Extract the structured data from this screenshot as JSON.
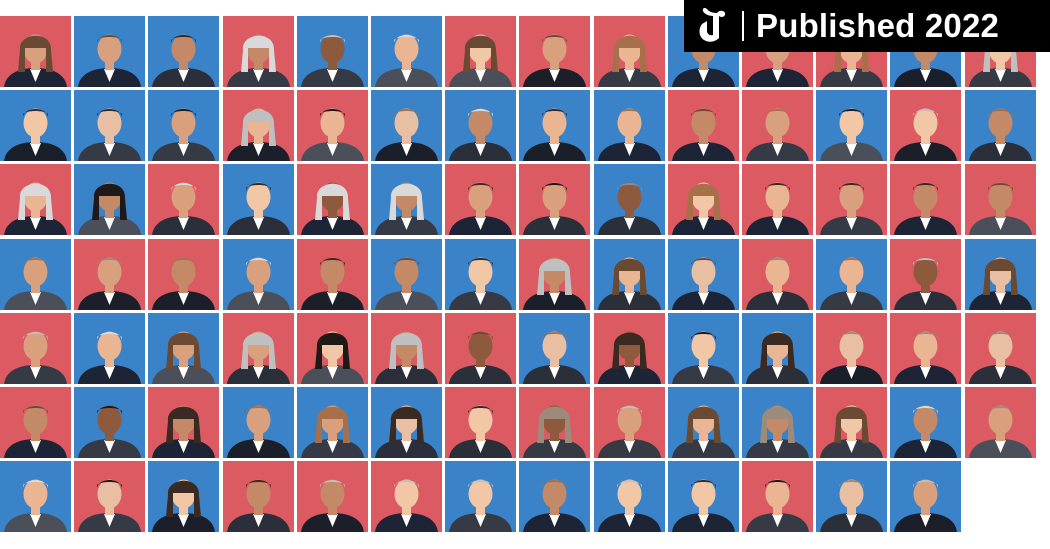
{
  "badge": {
    "logo_icon": "nyt-t-logo-icon",
    "label": "Published 2022"
  },
  "colors": {
    "red": "#dc5a62",
    "blue": "#3a83c8",
    "badge_bg": "#000000",
    "badge_text": "#ffffff"
  },
  "grid": {
    "rows": [
      [
        "r",
        "b",
        "b",
        "r",
        "b",
        "b",
        "r",
        "r",
        "r",
        "b",
        "r",
        "r",
        "b",
        "r"
      ],
      [
        "b",
        "b",
        "b",
        "r",
        "r",
        "b",
        "b",
        "b",
        "b",
        "r",
        "r",
        "b",
        "r",
        "b"
      ],
      [
        "r",
        "b",
        "r",
        "b",
        "r",
        "b",
        "r",
        "r",
        "b",
        "r",
        "r",
        "r",
        "r",
        "r"
      ],
      [
        "b",
        "r",
        "r",
        "b",
        "r",
        "b",
        "b",
        "r",
        "b",
        "b",
        "r",
        "b",
        "r",
        "b"
      ],
      [
        "r",
        "b",
        "b",
        "r",
        "r",
        "r",
        "r",
        "b",
        "r",
        "b",
        "b",
        "r",
        "r",
        "r"
      ],
      [
        "r",
        "b",
        "r",
        "b",
        "b",
        "b",
        "r",
        "r",
        "r",
        "b",
        "b",
        "r",
        "b",
        "r"
      ],
      [
        "b",
        "r",
        "b",
        "r",
        "r",
        "r",
        "b",
        "b",
        "b",
        "b",
        "r",
        "b",
        "b"
      ]
    ]
  }
}
